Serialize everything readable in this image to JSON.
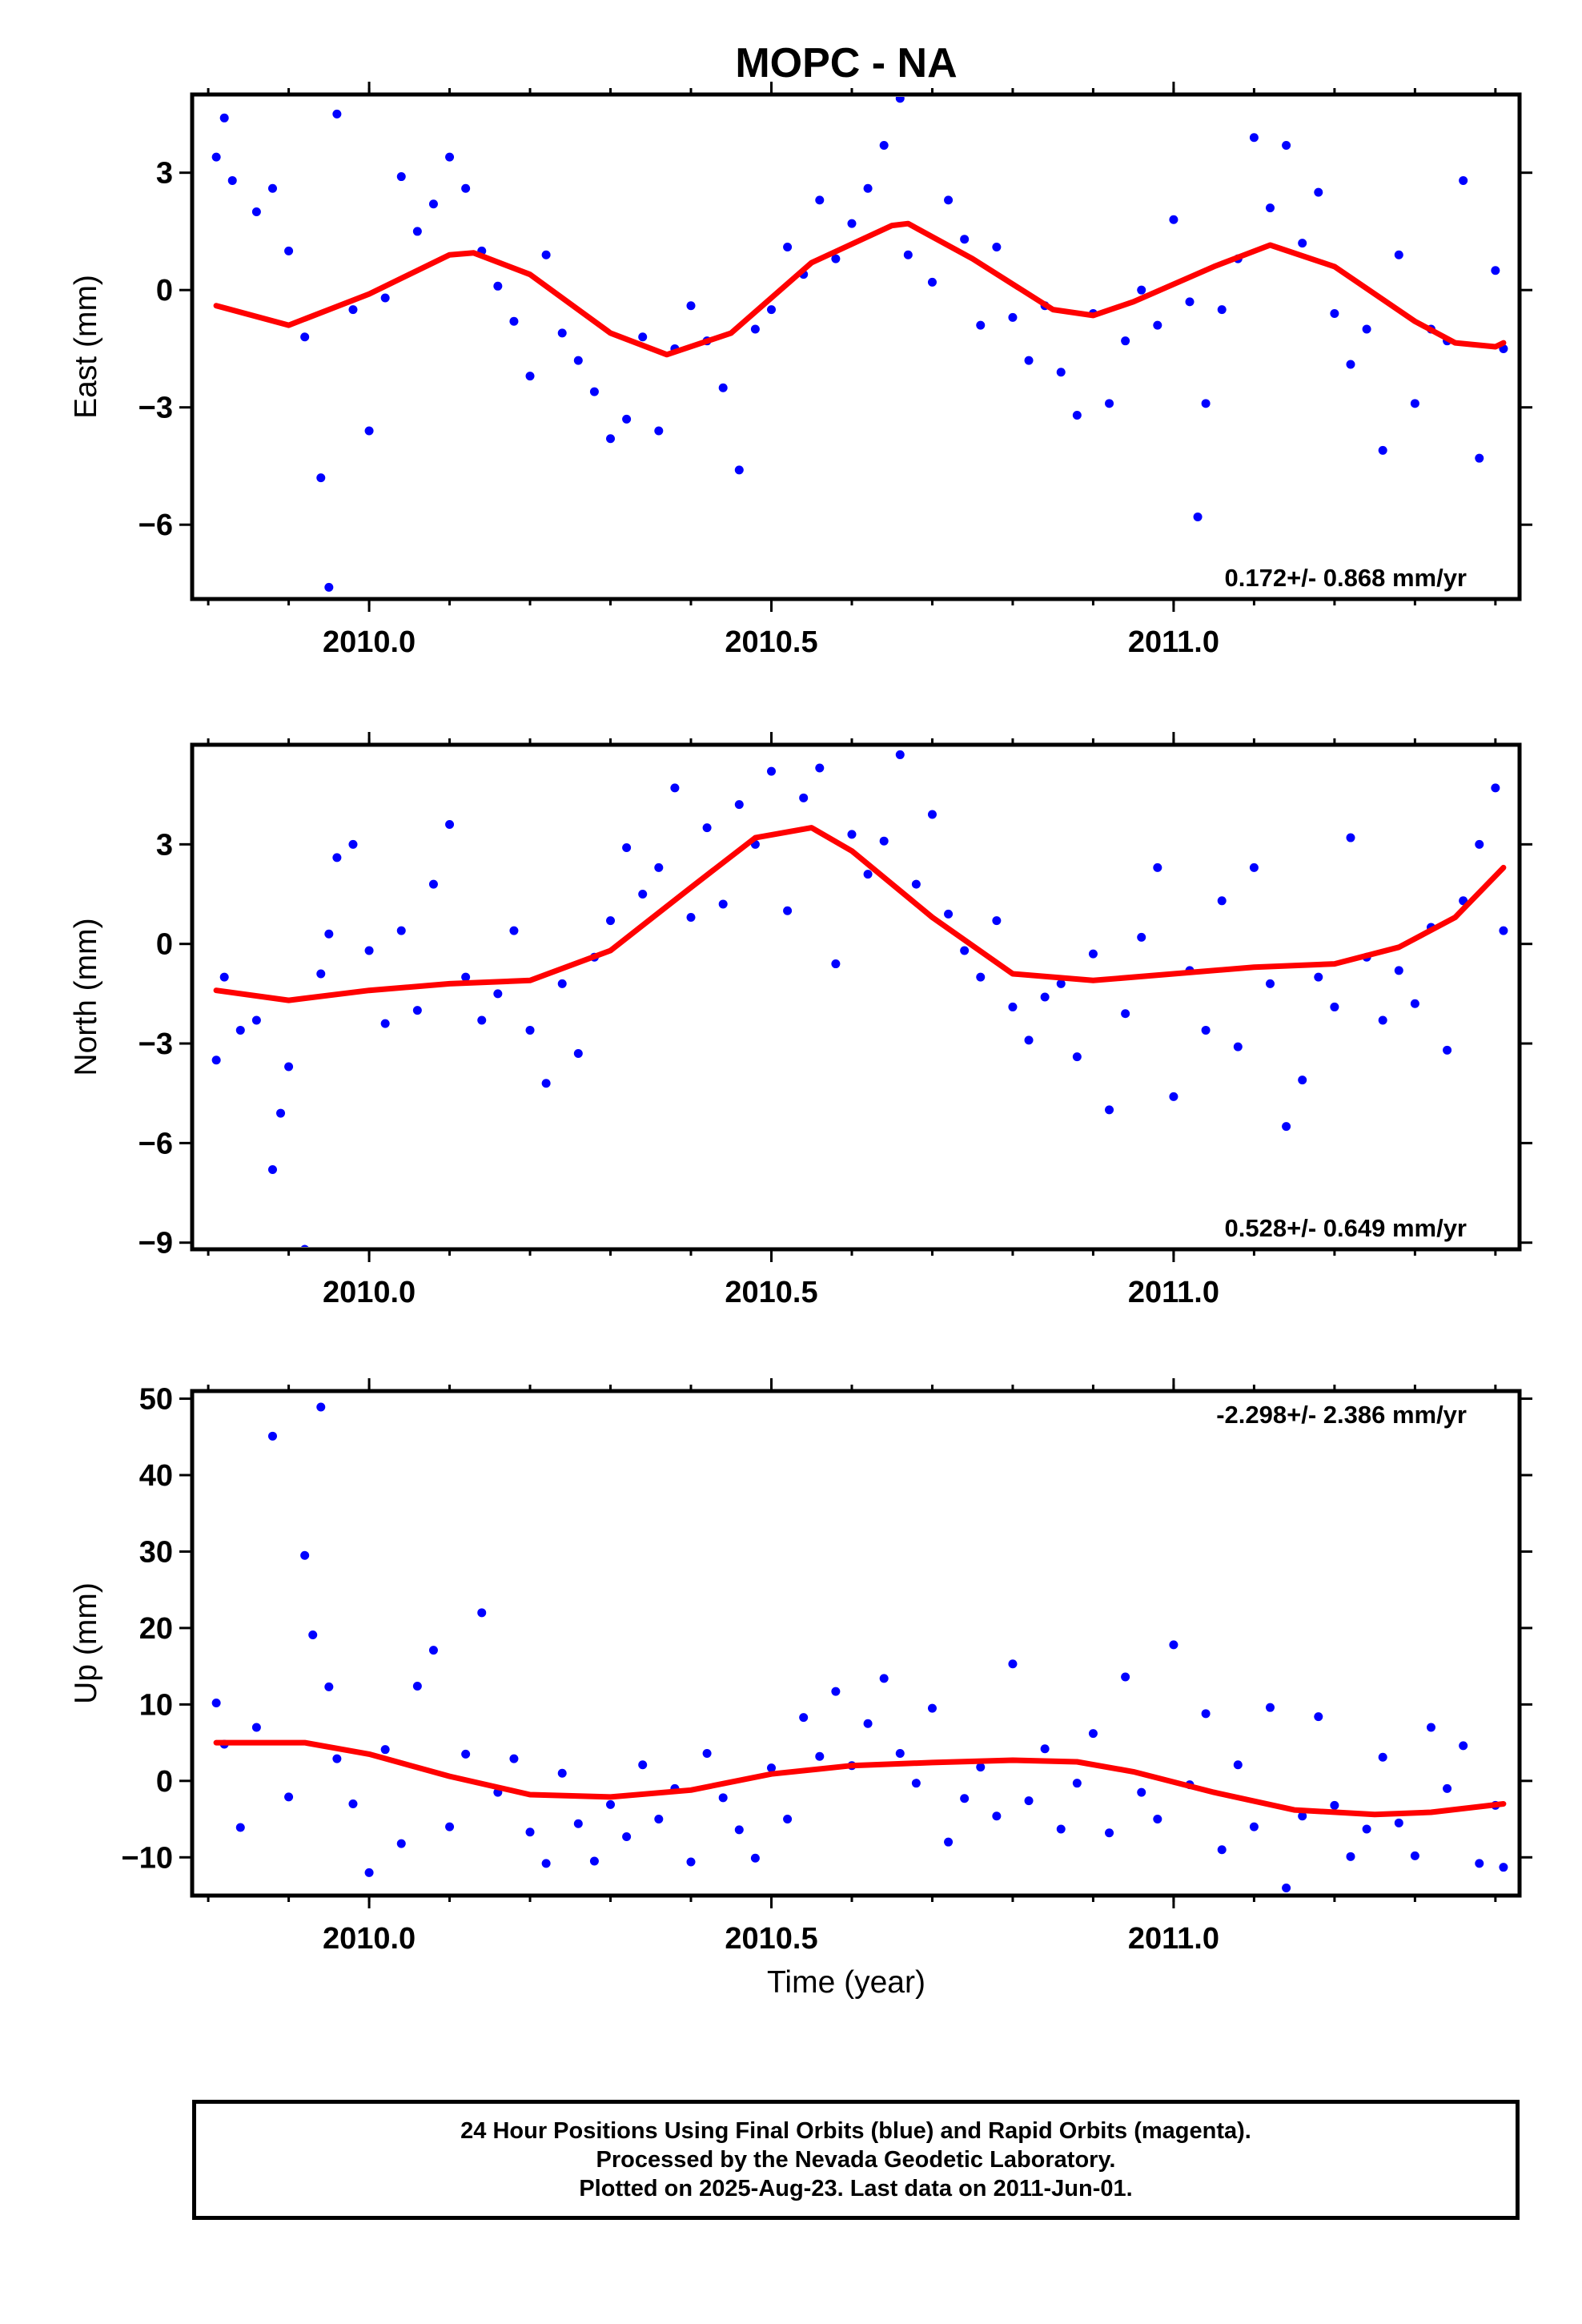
{
  "title": "MOPC - NA",
  "xlabel": "Time (year)",
  "caption": [
    "24 Hour Positions Using Final Orbits (blue) and Rapid Orbits (magenta).",
    "Processed by the Nevada Geodetic Laboratory.",
    "Plotted on 2025-Aug-23. Last data on 2011-Jun-01."
  ],
  "colors": {
    "points": "#0000ff",
    "fit": "#ff0000",
    "axis": "#000000"
  },
  "chart_data": [
    {
      "type": "scatter",
      "ylabel": "East (mm)",
      "xlim": [
        2009.78,
        2011.43
      ],
      "ylim": [
        -7.9,
        5.0
      ],
      "xticks": [
        2010.0,
        2010.5,
        2011.0
      ],
      "xtick_labels": [
        "2010.0",
        "2010.5",
        "2011.0"
      ],
      "yticks": [
        3,
        0,
        -3,
        -6
      ],
      "ytick_labels": [
        "3",
        "0",
        "−3",
        "−6"
      ],
      "rate_label": "0.172+/- 0.868 mm/yr",
      "rate_position": "bottom-right",
      "series": [
        {
          "style": "points",
          "x": [
            2009.81,
            2009.82,
            2009.83,
            2009.86,
            2009.88,
            2009.9,
            2009.92,
            2009.94,
            2009.95,
            2009.96,
            2009.98,
            2010.0,
            2010.02,
            2010.04,
            2010.06,
            2010.08,
            2010.1,
            2010.12,
            2010.14,
            2010.16,
            2010.18,
            2010.2,
            2010.22,
            2010.24,
            2010.26,
            2010.28,
            2010.3,
            2010.32,
            2010.34,
            2010.36,
            2010.38,
            2010.4,
            2010.42,
            2010.44,
            2010.46,
            2010.48,
            2010.5,
            2010.52,
            2010.54,
            2010.56,
            2010.58,
            2010.6,
            2010.62,
            2010.64,
            2010.66,
            2010.67,
            2010.7,
            2010.72,
            2010.74,
            2010.76,
            2010.78,
            2010.8,
            2010.82,
            2010.84,
            2010.86,
            2010.88,
            2010.9,
            2010.92,
            2010.94,
            2010.96,
            2010.98,
            2011.0,
            2011.02,
            2011.03,
            2011.04,
            2011.06,
            2011.08,
            2011.1,
            2011.12,
            2011.14,
            2011.16,
            2011.18,
            2011.2,
            2011.22,
            2011.24,
            2011.26,
            2011.28,
            2011.3,
            2011.32,
            2011.34,
            2011.36,
            2011.38,
            2011.4,
            2011.41
          ],
          "y": [
            3.4,
            4.4,
            2.8,
            2.0,
            2.6,
            1.0,
            -1.2,
            -4.8,
            -7.6,
            4.5,
            -0.5,
            -3.6,
            -0.2,
            2.9,
            1.5,
            2.2,
            3.4,
            2.6,
            1.0,
            0.1,
            -0.8,
            -2.2,
            0.9,
            -1.1,
            -1.8,
            -2.6,
            -3.8,
            -3.3,
            -1.2,
            -3.6,
            -1.5,
            -0.4,
            -1.3,
            -2.5,
            -4.6,
            -1.0,
            -0.5,
            1.1,
            0.4,
            2.3,
            0.8,
            1.7,
            2.6,
            3.7,
            4.9,
            0.9,
            0.2,
            2.3,
            1.3,
            -0.9,
            1.1,
            -0.7,
            -1.8,
            -0.4,
            -2.1,
            -3.2,
            -0.6,
            -2.9,
            -1.3,
            0.0,
            -0.9,
            1.8,
            -0.3,
            -5.8,
            -2.9,
            -0.5,
            0.8,
            3.9,
            2.1,
            3.7,
            1.2,
            2.5,
            -0.6,
            -1.9,
            -1.0,
            -4.1,
            0.9,
            -2.9,
            -1.0,
            -1.3,
            2.8,
            -4.3,
            0.5,
            -1.5
          ]
        },
        {
          "style": "line",
          "x": [
            2009.81,
            2009.9,
            2010.0,
            2010.1,
            2010.13,
            2010.2,
            2010.3,
            2010.37,
            2010.45,
            2010.55,
            2010.65,
            2010.67,
            2010.75,
            2010.85,
            2010.9,
            2010.95,
            2011.05,
            2011.12,
            2011.2,
            2011.3,
            2011.35,
            2011.4,
            2011.41
          ],
          "y": [
            -0.4,
            -0.9,
            -0.1,
            0.9,
            0.95,
            0.4,
            -1.1,
            -1.65,
            -1.1,
            0.7,
            1.65,
            1.7,
            0.8,
            -0.5,
            -0.65,
            -0.3,
            0.6,
            1.15,
            0.6,
            -0.8,
            -1.35,
            -1.45,
            -1.35
          ]
        }
      ]
    },
    {
      "type": "scatter",
      "ylabel": "North (mm)",
      "xlim": [
        2009.78,
        2011.43
      ],
      "ylim": [
        -9.2,
        6.0
      ],
      "xticks": [
        2010.0,
        2010.5,
        2011.0
      ],
      "xtick_labels": [
        "2010.0",
        "2010.5",
        "2011.0"
      ],
      "yticks": [
        3,
        0,
        -3,
        -6,
        -9
      ],
      "ytick_labels": [
        "3",
        "0",
        "−3",
        "−6",
        "−9"
      ],
      "rate_label": "0.528+/- 0.649 mm/yr",
      "rate_position": "bottom-right",
      "series": [
        {
          "style": "points",
          "x": [
            2009.81,
            2009.82,
            2009.84,
            2009.86,
            2009.88,
            2009.89,
            2009.9,
            2009.92,
            2009.94,
            2009.95,
            2009.96,
            2009.98,
            2010.0,
            2010.02,
            2010.04,
            2010.06,
            2010.08,
            2010.1,
            2010.12,
            2010.14,
            2010.16,
            2010.18,
            2010.2,
            2010.22,
            2010.24,
            2010.26,
            2010.28,
            2010.3,
            2010.32,
            2010.34,
            2010.36,
            2010.38,
            2010.4,
            2010.42,
            2010.44,
            2010.46,
            2010.48,
            2010.5,
            2010.52,
            2010.54,
            2010.56,
            2010.58,
            2010.6,
            2010.62,
            2010.64,
            2010.66,
            2010.68,
            2010.7,
            2010.72,
            2010.74,
            2010.76,
            2010.78,
            2010.8,
            2010.82,
            2010.84,
            2010.86,
            2010.88,
            2010.9,
            2010.92,
            2010.94,
            2010.96,
            2010.98,
            2011.0,
            2011.02,
            2011.04,
            2011.06,
            2011.08,
            2011.1,
            2011.12,
            2011.14,
            2011.16,
            2011.18,
            2011.2,
            2011.22,
            2011.24,
            2011.26,
            2011.28,
            2011.3,
            2011.32,
            2011.34,
            2011.36,
            2011.38,
            2011.4,
            2011.41
          ],
          "y": [
            -3.5,
            -1.0,
            -2.6,
            -2.3,
            -6.8,
            -5.1,
            -3.7,
            -9.2,
            -0.9,
            0.3,
            2.6,
            3.0,
            -0.2,
            -2.4,
            0.4,
            -2.0,
            1.8,
            3.6,
            -1.0,
            -2.3,
            -1.5,
            0.4,
            -2.6,
            -4.2,
            -1.2,
            -3.3,
            -0.4,
            0.7,
            2.9,
            1.5,
            2.3,
            4.7,
            0.8,
            3.5,
            1.2,
            4.2,
            3.0,
            5.2,
            1.0,
            4.4,
            5.3,
            -0.6,
            3.3,
            2.1,
            3.1,
            5.7,
            1.8,
            3.9,
            0.9,
            -0.2,
            -1.0,
            0.7,
            -1.9,
            -2.9,
            -1.6,
            -1.2,
            -3.4,
            -0.3,
            -5.0,
            -2.1,
            0.2,
            2.3,
            -4.6,
            -0.8,
            -2.6,
            1.3,
            -3.1,
            2.3,
            -1.2,
            -5.5,
            -4.1,
            -1.0,
            -1.9,
            3.2,
            -0.4,
            -2.3,
            -0.8,
            -1.8,
            0.5,
            -3.2,
            1.3,
            3.0,
            4.7,
            0.4
          ]
        },
        {
          "style": "line",
          "x": [
            2009.81,
            2009.9,
            2010.0,
            2010.1,
            2010.2,
            2010.3,
            2010.4,
            2010.48,
            2010.55,
            2010.6,
            2010.7,
            2010.8,
            2010.9,
            2011.0,
            2011.1,
            2011.2,
            2011.28,
            2011.35,
            2011.41
          ],
          "y": [
            -1.4,
            -1.7,
            -1.4,
            -1.2,
            -1.1,
            -0.2,
            1.7,
            3.2,
            3.5,
            2.8,
            0.8,
            -0.9,
            -1.1,
            -0.9,
            -0.7,
            -0.6,
            -0.1,
            0.8,
            2.3
          ]
        }
      ]
    },
    {
      "type": "scatter",
      "ylabel": "Up (mm)",
      "xlim": [
        2009.78,
        2011.43
      ],
      "ylim": [
        -15,
        51
      ],
      "xticks": [
        2010.0,
        2010.5,
        2011.0
      ],
      "xtick_labels": [
        "2010.0",
        "2010.5",
        "2011.0"
      ],
      "yticks": [
        50,
        40,
        30,
        20,
        10,
        0,
        -10
      ],
      "ytick_labels": [
        "50",
        "40",
        "30",
        "20",
        "10",
        "0",
        "−10"
      ],
      "rate_label": "-2.298+/- 2.386 mm/yr",
      "rate_position": "top-right",
      "series": [
        {
          "style": "points",
          "x": [
            2009.81,
            2009.82,
            2009.84,
            2009.86,
            2009.88,
            2009.9,
            2009.92,
            2009.93,
            2009.94,
            2009.95,
            2009.96,
            2009.98,
            2010.0,
            2010.02,
            2010.04,
            2010.06,
            2010.08,
            2010.1,
            2010.12,
            2010.14,
            2010.16,
            2010.18,
            2010.2,
            2010.22,
            2010.24,
            2010.26,
            2010.28,
            2010.3,
            2010.32,
            2010.34,
            2010.36,
            2010.38,
            2010.4,
            2010.42,
            2010.44,
            2010.46,
            2010.48,
            2010.5,
            2010.52,
            2010.54,
            2010.56,
            2010.58,
            2010.6,
            2010.62,
            2010.64,
            2010.66,
            2010.68,
            2010.7,
            2010.72,
            2010.74,
            2010.76,
            2010.78,
            2010.8,
            2010.82,
            2010.84,
            2010.86,
            2010.88,
            2010.9,
            2010.92,
            2010.94,
            2010.96,
            2010.98,
            2011.0,
            2011.02,
            2011.04,
            2011.06,
            2011.08,
            2011.1,
            2011.12,
            2011.14,
            2011.16,
            2011.18,
            2011.2,
            2011.22,
            2011.24,
            2011.26,
            2011.28,
            2011.3,
            2011.32,
            2011.34,
            2011.36,
            2011.38,
            2011.4,
            2011.41
          ],
          "y": [
            10.2,
            4.8,
            -6.1,
            7.0,
            45.1,
            -2.1,
            29.5,
            19.1,
            48.9,
            12.3,
            2.9,
            -3.0,
            -12.0,
            4.1,
            -8.2,
            12.4,
            17.1,
            -6.0,
            3.5,
            22.0,
            -1.5,
            2.9,
            -6.7,
            -10.8,
            1.0,
            -5.6,
            -10.5,
            -3.1,
            -7.3,
            2.1,
            -5.0,
            -1.0,
            -10.6,
            3.6,
            -2.2,
            -6.4,
            -10.1,
            1.7,
            -5.0,
            8.3,
            3.2,
            11.7,
            2.0,
            7.5,
            13.4,
            3.6,
            -0.3,
            9.5,
            -8.0,
            -2.3,
            1.8,
            -4.6,
            15.3,
            -2.6,
            4.2,
            -6.3,
            -0.3,
            6.2,
            -6.8,
            13.6,
            -1.5,
            -5.0,
            17.8,
            -0.5,
            8.8,
            -9.0,
            2.1,
            -6.0,
            9.6,
            -14.0,
            -4.6,
            8.4,
            -3.2,
            -9.9,
            -6.3,
            3.1,
            -5.5,
            -9.8,
            7.0,
            -1.0,
            4.6,
            -10.8,
            -3.2,
            -11.3
          ]
        },
        {
          "style": "line",
          "x": [
            2009.81,
            2009.92,
            2010.0,
            2010.1,
            2010.2,
            2010.3,
            2010.4,
            2010.5,
            2010.6,
            2010.7,
            2010.8,
            2010.88,
            2010.95,
            2011.05,
            2011.15,
            2011.25,
            2011.32,
            2011.41
          ],
          "y": [
            5.0,
            5.0,
            3.5,
            0.6,
            -1.8,
            -2.1,
            -1.2,
            0.9,
            2.0,
            2.4,
            2.7,
            2.5,
            1.2,
            -1.5,
            -3.8,
            -4.4,
            -4.1,
            -3.0
          ]
        }
      ]
    }
  ]
}
